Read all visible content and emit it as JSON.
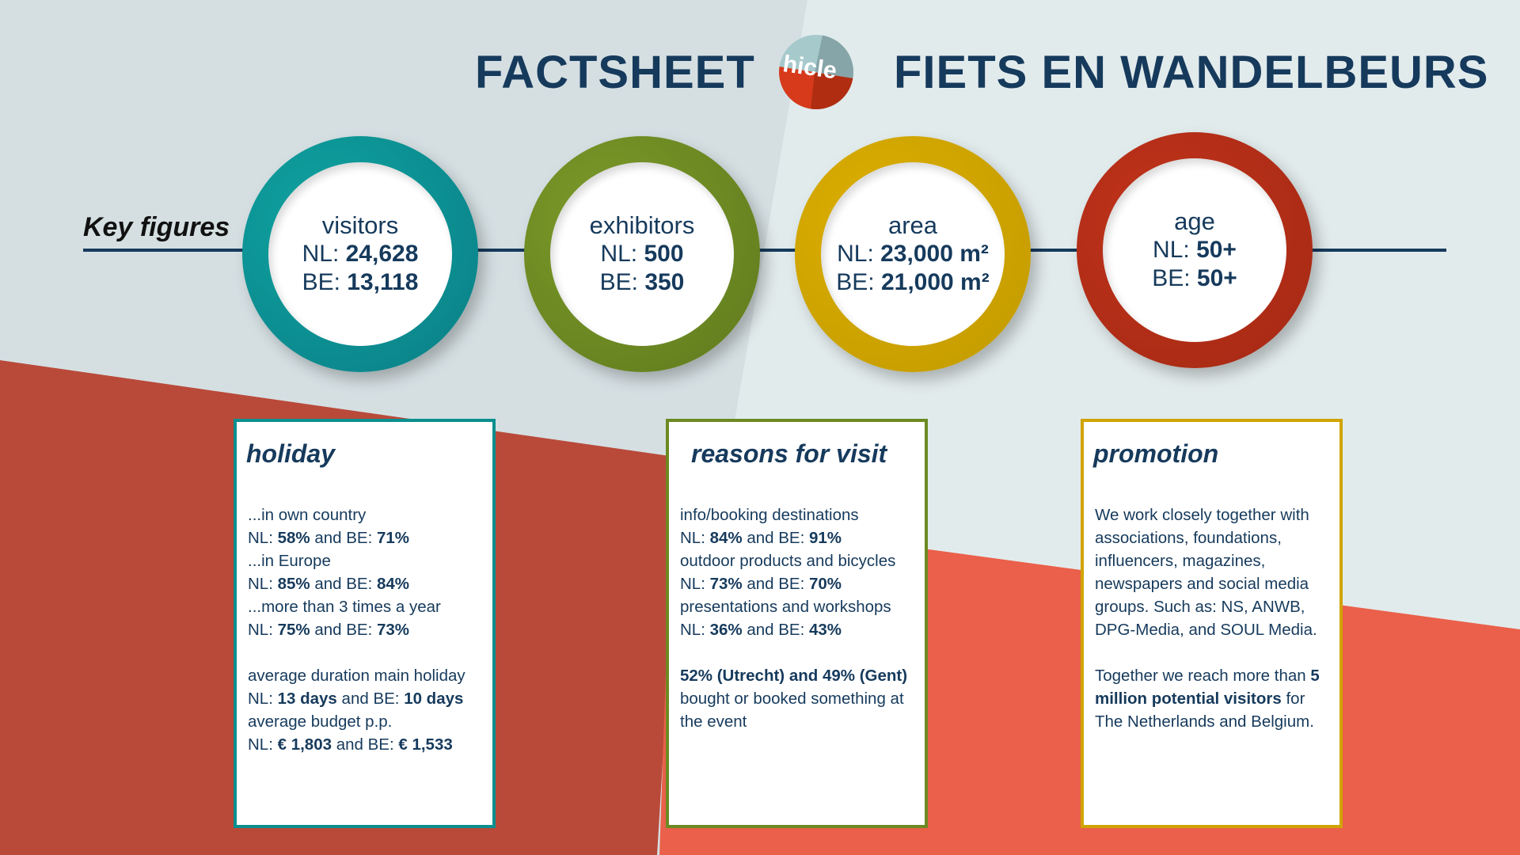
{
  "header": {
    "left_title": "FACTSHEET",
    "right_title": "FIETS EN WANDELBEURS",
    "logo_text": "hicle"
  },
  "key_figures_label": "Key figures",
  "colors": {
    "navy": "#163a5c",
    "teal": "#0a8f8f",
    "olive": "#6c8a22",
    "gold": "#d0a400",
    "red": "#b52d18"
  },
  "figures": [
    {
      "label": "visitors",
      "nl_prefix": "NL: ",
      "nl": "24,628",
      "be_prefix": "BE: ",
      "be": "13,118"
    },
    {
      "label": "exhibitors",
      "nl_prefix": "NL: ",
      "nl": "500",
      "be_prefix": "BE: ",
      "be": "350"
    },
    {
      "label": "area",
      "nl_prefix": "NL: ",
      "nl": "23,000 m²",
      "be_prefix": "BE: ",
      "be": "21,000 m²"
    },
    {
      "label": "age",
      "nl_prefix": "NL: ",
      "nl": "50+",
      "be_prefix": "BE: ",
      "be": "50+"
    }
  ],
  "holiday": {
    "title": "holiday",
    "lines": [
      [
        {
          "t": "...in own country"
        }
      ],
      [
        {
          "t": "NL: "
        },
        {
          "b": "58%"
        },
        {
          "t": " and BE: "
        },
        {
          "b": "71%"
        }
      ],
      [
        {
          "t": "...in Europe"
        }
      ],
      [
        {
          "t": "NL: "
        },
        {
          "b": "85%"
        },
        {
          "t": " and BE: "
        },
        {
          "b": "84%"
        }
      ],
      [
        {
          "t": "...more than 3 times a year"
        }
      ],
      [
        {
          "t": "NL: "
        },
        {
          "b": "75%"
        },
        {
          "t": " and BE: "
        },
        {
          "b": "73%"
        }
      ],
      [],
      [
        {
          "t": "average duration main holiday"
        }
      ],
      [
        {
          "t": "NL: "
        },
        {
          "b": "13 days"
        },
        {
          "t": " and BE: "
        },
        {
          "b": "10 days"
        }
      ],
      [
        {
          "t": "average budget p.p."
        }
      ],
      [
        {
          "t": "NL: "
        },
        {
          "b": "€ 1,803"
        },
        {
          "t": " and BE: "
        },
        {
          "b": "€ 1,533"
        }
      ]
    ]
  },
  "reasons": {
    "title": "reasons for visit",
    "lines": [
      [
        {
          "t": "info/booking destinations"
        }
      ],
      [
        {
          "t": "NL: "
        },
        {
          "b": "84%"
        },
        {
          "t": " and BE: "
        },
        {
          "b": "91%"
        }
      ],
      [
        {
          "t": "outdoor products and bicycles"
        }
      ],
      [
        {
          "t": "NL: "
        },
        {
          "b": "73%"
        },
        {
          "t": " and BE: "
        },
        {
          "b": "70%"
        }
      ],
      [
        {
          "t": "presentations and workshops"
        }
      ],
      [
        {
          "t": "NL: "
        },
        {
          "b": "36%"
        },
        {
          "t": " and BE: "
        },
        {
          "b": "43%"
        }
      ],
      [],
      [
        {
          "b": "52% (Utrecht) and 49% (Gent)"
        },
        {
          "t": " bought or booked something at the event"
        }
      ]
    ]
  },
  "promotion": {
    "title": "promotion",
    "lines": [
      [
        {
          "t": "We work closely together with associations, foundations, influencers, magazines, newspapers and social media groups. Such as: NS, ANWB, DPG-Media, and SOUL Media."
        }
      ],
      [],
      [
        {
          "t": "Together we reach more than "
        },
        {
          "b": "5 million potential visitors"
        },
        {
          "t": " for The Netherlands and Belgium."
        }
      ]
    ]
  }
}
